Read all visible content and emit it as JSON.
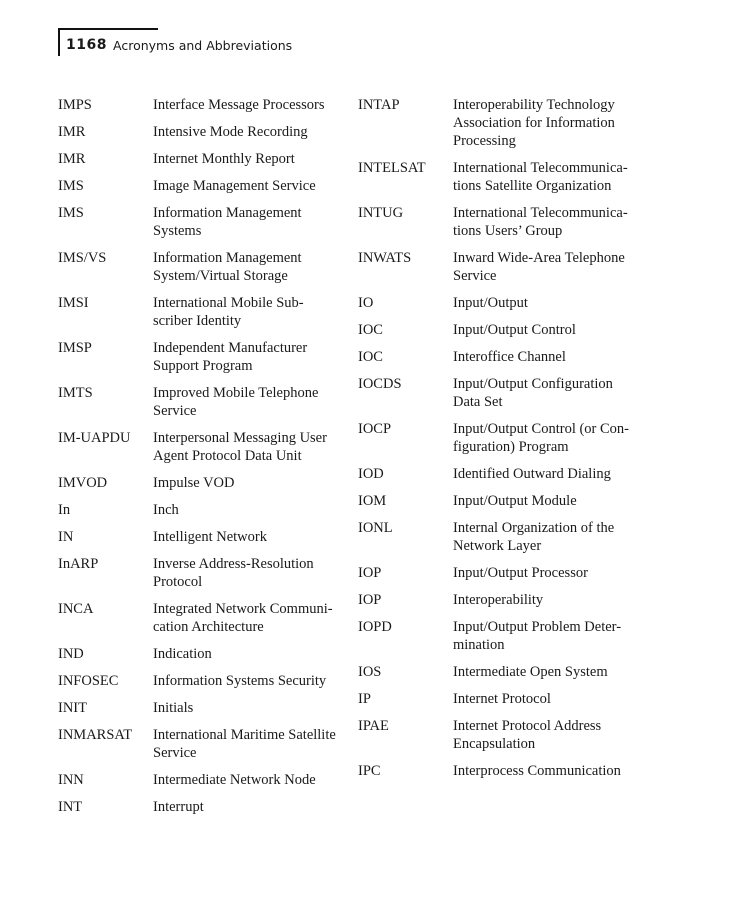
{
  "header": {
    "page_number": "1168",
    "running_title": "Acronyms and Abbreviations"
  },
  "left_column": [
    {
      "acronym": "IMPS",
      "definition": "Interface Message Processors"
    },
    {
      "acronym": "IMR",
      "definition": "Intensive Mode Recording"
    },
    {
      "acronym": "IMR",
      "definition": "Internet Monthly Report"
    },
    {
      "acronym": "IMS",
      "definition": "Image Management Service"
    },
    {
      "acronym": "IMS",
      "definition": "Information Management\nSystems"
    },
    {
      "acronym": "IMS/VS",
      "definition": "Information Management\nSystem/Virtual Storage"
    },
    {
      "acronym": "IMSI",
      "definition": "International Mobile Sub-\nscriber Identity"
    },
    {
      "acronym": "IMSP",
      "definition": "Independent Manufacturer\nSupport Program"
    },
    {
      "acronym": "IMTS",
      "definition": "Improved Mobile Telephone\nService"
    },
    {
      "acronym": "IM-UAPDU",
      "definition": "Interpersonal Messaging User\nAgent Protocol Data Unit"
    },
    {
      "acronym": "IMVOD",
      "definition": "Impulse VOD"
    },
    {
      "acronym": "In",
      "definition": "Inch"
    },
    {
      "acronym": "IN",
      "definition": "Intelligent Network"
    },
    {
      "acronym": "InARP",
      "definition": "Inverse Address-Resolution\nProtocol"
    },
    {
      "acronym": "INCA",
      "definition": "Integrated Network Communi-\ncation Architecture"
    },
    {
      "acronym": "IND",
      "definition": "Indication"
    },
    {
      "acronym": "INFOSEC",
      "definition": "Information Systems Security"
    },
    {
      "acronym": "INIT",
      "definition": "Initials"
    },
    {
      "acronym": "INMARSAT",
      "definition": "International Maritime Satellite\nService"
    },
    {
      "acronym": "INN",
      "definition": "Intermediate Network Node"
    },
    {
      "acronym": "INT",
      "definition": "Interrupt"
    }
  ],
  "right_column": [
    {
      "acronym": "INTAP",
      "definition": "Interoperability Technology\nAssociation for Information\nProcessing"
    },
    {
      "acronym": "INTELSAT",
      "definition": "International Telecommunica-\ntions Satellite Organization"
    },
    {
      "acronym": "INTUG",
      "definition": "International Telecommunica-\ntions Users’ Group"
    },
    {
      "acronym": "INWATS",
      "definition": "Inward Wide-Area Telephone\nService"
    },
    {
      "acronym": "IO",
      "definition": "Input/Output"
    },
    {
      "acronym": "IOC",
      "definition": "Input/Output Control"
    },
    {
      "acronym": "IOC",
      "definition": "Interoffice Channel"
    },
    {
      "acronym": "IOCDS",
      "definition": "Input/Output Configuration\nData Set"
    },
    {
      "acronym": "IOCP",
      "definition": "Input/Output Control (or Con-\nfiguration) Program"
    },
    {
      "acronym": "IOD",
      "definition": "Identified Outward Dialing"
    },
    {
      "acronym": "IOM",
      "definition": "Input/Output Module"
    },
    {
      "acronym": "IONL",
      "definition": "Internal Organization of the\nNetwork Layer"
    },
    {
      "acronym": "IOP",
      "definition": "Input/Output Processor"
    },
    {
      "acronym": "IOP",
      "definition": "Interoperability"
    },
    {
      "acronym": "IOPD",
      "definition": "Input/Output Problem Deter-\nmination"
    },
    {
      "acronym": "IOS",
      "definition": "Intermediate Open System"
    },
    {
      "acronym": "IP",
      "definition": "Internet Protocol"
    },
    {
      "acronym": "IPAE",
      "definition": "Internet Protocol Address\nEncapsulation"
    },
    {
      "acronym": "IPC",
      "definition": "Interprocess Communication"
    }
  ]
}
